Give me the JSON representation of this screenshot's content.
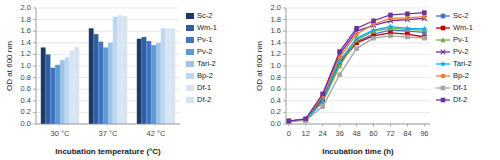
{
  "chart_data": [
    {
      "type": "bar",
      "xlabel": "Incubation temperature (°C)",
      "ylabel": "OD at 600 nm",
      "categories": [
        "30 °C",
        "37 °C",
        "42 °C"
      ],
      "series": [
        {
          "name": "Sc-2",
          "color": "#1f3864",
          "values": [
            1.32,
            1.65,
            1.47
          ]
        },
        {
          "name": "Wm-1",
          "color": "#2e5fa3",
          "values": [
            1.2,
            1.55,
            1.5
          ]
        },
        {
          "name": "Pv-1",
          "color": "#4472c4",
          "values": [
            0.97,
            1.42,
            1.43
          ]
        },
        {
          "name": "Pv-2",
          "color": "#5b9bd5",
          "values": [
            1.02,
            1.32,
            1.36
          ]
        },
        {
          "name": "Tari-2",
          "color": "#9dc3e6",
          "values": [
            1.1,
            1.4,
            1.4
          ]
        },
        {
          "name": "Bp-2",
          "color": "#bdd7ee",
          "values": [
            1.15,
            1.85,
            1.65
          ]
        },
        {
          "name": "Df-1",
          "color": "#dae3f3",
          "values": [
            1.27,
            1.88,
            1.65
          ]
        },
        {
          "name": "Df-2",
          "color": "#d6e4f0",
          "values": [
            1.33,
            1.86,
            1.65
          ]
        }
      ],
      "ylim": [
        0,
        2
      ],
      "yticks": [
        {
          "value": 0,
          "label": "0.0"
        },
        0.2,
        0.4,
        0.6,
        0.8,
        {
          "value": 1.0,
          "label": "1.0"
        },
        1.2,
        1.4,
        1.6,
        1.8,
        {
          "value": 2.0,
          "label": "2.0"
        }
      ],
      "grid": true,
      "legend": "right"
    },
    {
      "type": "line",
      "xlabel": "Incubation time (h)",
      "ylabel": "OD at 600 nm",
      "x": [
        0,
        12,
        24,
        36,
        48,
        60,
        72,
        84,
        96
      ],
      "series": [
        {
          "name": "Sc-2",
          "color": "#4472c4",
          "marker": "square",
          "values": [
            0.05,
            0.08,
            0.45,
            1.1,
            1.42,
            1.55,
            1.62,
            1.6,
            1.58
          ]
        },
        {
          "name": "Wm-1",
          "color": "#c00000",
          "marker": "square",
          "values": [
            0.05,
            0.07,
            0.42,
            1.05,
            1.4,
            1.52,
            1.57,
            1.55,
            1.5
          ]
        },
        {
          "name": "Pv-1",
          "color": "#70ad47",
          "marker": "triangle",
          "values": [
            0.05,
            0.07,
            0.38,
            1.0,
            1.45,
            1.6,
            1.65,
            1.63,
            1.62
          ]
        },
        {
          "name": "Pv-2",
          "color": "#7030a0",
          "marker": "x",
          "values": [
            0.05,
            0.08,
            0.5,
            1.2,
            1.6,
            1.7,
            1.78,
            1.8,
            1.82
          ]
        },
        {
          "name": "Tari-2",
          "color": "#00b0f0",
          "marker": "star",
          "values": [
            0.05,
            0.07,
            0.4,
            1.08,
            1.48,
            1.62,
            1.68,
            1.65,
            1.64
          ]
        },
        {
          "name": "Bp-2",
          "color": "#ed7d31",
          "marker": "circle",
          "values": [
            0.05,
            0.09,
            0.48,
            1.15,
            1.55,
            1.72,
            1.82,
            1.83,
            1.85
          ]
        },
        {
          "name": "Df-1",
          "color": "#a5a5a5",
          "marker": "square",
          "values": [
            0.05,
            0.06,
            0.3,
            0.85,
            1.3,
            1.48,
            1.52,
            1.5,
            1.48
          ]
        },
        {
          "name": "Df-2",
          "color": "#7030a0",
          "marker": "square",
          "values": [
            0.05,
            0.09,
            0.52,
            1.25,
            1.65,
            1.78,
            1.88,
            1.9,
            1.92
          ]
        }
      ],
      "xlim": [
        -2,
        100
      ],
      "xticks": [
        0,
        12,
        24,
        36,
        48,
        60,
        72,
        84,
        96
      ],
      "ylim": [
        0,
        2
      ],
      "yticks": [
        {
          "value": 0,
          "label": "0.0"
        },
        0.2,
        0.4,
        0.6,
        0.8,
        {
          "value": 1.0,
          "label": "1.0"
        },
        1.2,
        1.4,
        1.6,
        1.8,
        {
          "value": 2.0,
          "label": "2.0"
        }
      ],
      "grid": true,
      "legend": "right"
    }
  ]
}
